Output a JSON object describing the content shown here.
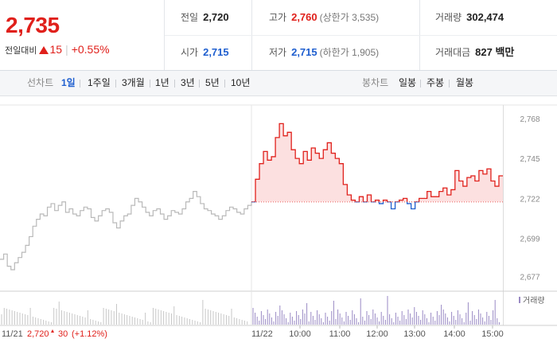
{
  "summary": {
    "price": "2,735",
    "change_label": "전일대비",
    "change_value": "15",
    "change_pct": "+0.55%",
    "prev_close_label": "전일",
    "prev_close": "2,720",
    "open_label": "시가",
    "open": "2,715",
    "high_label": "고가",
    "high": "2,760",
    "upper_limit": "(상한가 3,535)",
    "low_label": "저가",
    "low": "2,715",
    "lower_limit": "(하한가 1,905)",
    "volume_label": "거래량",
    "volume": "302,474",
    "amount_label": "거래대금",
    "amount": "827 백만"
  },
  "line_tabs": {
    "label": "선차트",
    "items": [
      "1일",
      "1주일",
      "3개월",
      "1년",
      "3년",
      "5년",
      "10년"
    ],
    "active": "1일"
  },
  "candle_tabs": {
    "label": "봉차트",
    "items": [
      "일봉",
      "주봉",
      "월봉"
    ]
  },
  "chart_data": {
    "type": "line",
    "title": "",
    "y_ticks": [
      "2,768",
      "2,745",
      "2,722",
      "2,699",
      "2,677"
    ],
    "y_tick_values": [
      2768,
      2745,
      2722,
      2699,
      2677
    ],
    "ylim": [
      2670,
      2778
    ],
    "baseline": 2720,
    "prev_day_label": "11/21",
    "prev_day_summary": "2,720",
    "prev_day_change": "30",
    "prev_day_pct": "(+1.12%)",
    "day_label": "11/22",
    "x_time_labels": [
      "10:00",
      "11:00",
      "12:00",
      "13:00",
      "14:00",
      "15:00"
    ],
    "volume_legend": "거래량",
    "prev_day_series": [
      2687,
      2690,
      2683,
      2681,
      2685,
      2688,
      2691,
      2695,
      2700,
      2706,
      2710,
      2713,
      2712,
      2717,
      2719,
      2715,
      2718,
      2720,
      2714,
      2716,
      2713,
      2712,
      2715,
      2717,
      2716,
      2711,
      2709,
      2712,
      2715,
      2716,
      2714,
      2708,
      2705,
      2709,
      2712,
      2713,
      2718,
      2722,
      2720,
      2717,
      2714,
      2712,
      2715,
      2716,
      2713,
      2710,
      2712,
      2715,
      2714,
      2713,
      2716,
      2720,
      2722,
      2726,
      2723,
      2719,
      2716,
      2715,
      2713,
      2712,
      2710,
      2712,
      2715,
      2717,
      2716,
      2714,
      2713,
      2716,
      2718,
      2720
    ],
    "day_series": [
      2720,
      2733,
      2742,
      2749,
      2744,
      2746,
      2757,
      2765,
      2758,
      2760,
      2750,
      2745,
      2742,
      2749,
      2744,
      2751,
      2748,
      2745,
      2750,
      2754,
      2748,
      2745,
      2742,
      2730,
      2724,
      2721,
      2720,
      2723,
      2720,
      2724,
      2720,
      2721,
      2719,
      2721,
      2720,
      2716,
      2720,
      2721,
      2722,
      2719,
      2716,
      2720,
      2722,
      2722,
      2726,
      2723,
      2723,
      2726,
      2728,
      2724,
      2727,
      2738,
      2732,
      2729,
      2734,
      2735,
      2732,
      2738,
      2736,
      2739,
      2732,
      2729,
      2735,
      2735
    ]
  }
}
